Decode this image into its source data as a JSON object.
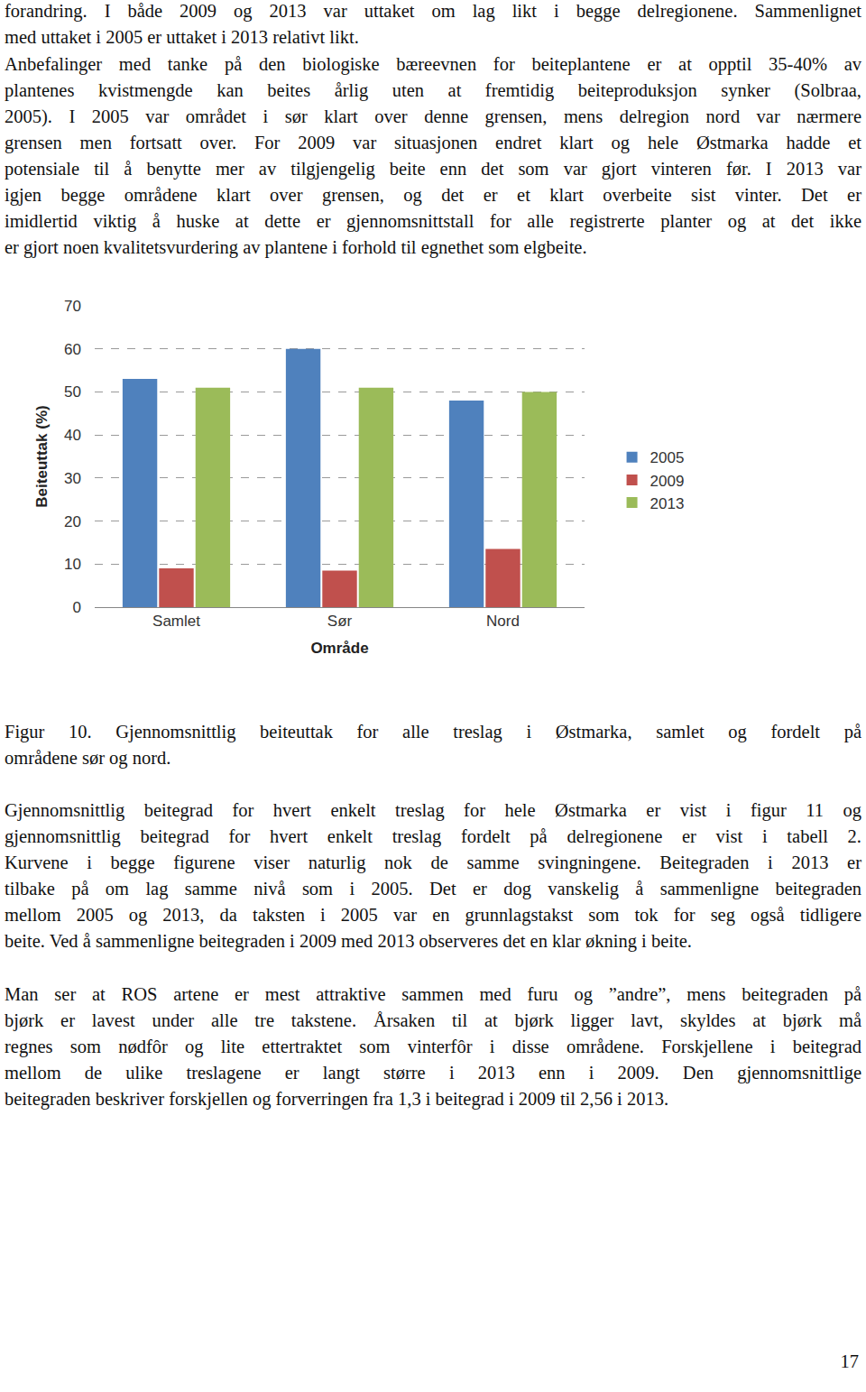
{
  "text_before": [
    [
      "forandring. I både 2009 og 2013 var uttaket om lag likt i begge delregionene. Sammenlignet",
      "med uttaket i 2005 er uttaket i 2013 relativt likt."
    ],
    [
      "Anbefalinger med tanke på den biologiske bæreevnen for beiteplantene er at opptil 35-40% av",
      "plantenes kvistmengde kan beites årlig uten at fremtidig beiteproduksjon synker (Solbraa,",
      "2005). I 2005 var området i sør klart over denne grensen, mens delregion nord var nærmere",
      "grensen men fortsatt over. For 2009 var situasjonen endret klart og hele Østmarka hadde et",
      "potensiale til å benytte mer av tilgjengelig beite enn det som var gjort vinteren før. I 2013 var",
      "igjen begge områdene klart over grensen, og det er et klart overbeite sist vinter. Det er",
      "imidlertid viktig å huske at dette er gjennomsnittstall for alle registrerte planter og at det ikke",
      "er gjort noen kvalitetsvurdering av plantene i forhold til egnethet som elgbeite."
    ]
  ],
  "chart_data": {
    "type": "bar",
    "categories": [
      "Samlet",
      "Sør",
      "Nord"
    ],
    "series": [
      {
        "name": "2005",
        "color": "#4f81bd",
        "values": [
          53,
          60,
          48
        ]
      },
      {
        "name": "2009",
        "color": "#c0504d",
        "values": [
          9,
          8.5,
          13.5
        ]
      },
      {
        "name": "2013",
        "color": "#9bbb59",
        "values": [
          51,
          51,
          50
        ]
      }
    ],
    "xlabel": "Område",
    "ylabel": "Beiteuttak (%)",
    "ylim": [
      0,
      70
    ],
    "yticks": [
      0,
      10,
      20,
      30,
      40,
      50,
      60,
      70
    ],
    "grid": true,
    "legend": "right"
  },
  "caption": [
    "Figur 10. Gjennomsnittlig beiteuttak for alle treslag i Østmarka, samlet og fordelt på",
    "områdene sør og nord."
  ],
  "text_after": [
    [
      "Gjennomsnittlig beitegrad for hvert enkelt treslag for hele Østmarka er vist i figur 11 og",
      "gjennomsnittlig beitegrad for hvert enkelt treslag fordelt på delregionene er vist i tabell 2.",
      "Kurvene i begge figurene viser naturlig nok de samme svingningene. Beitegraden i 2013 er",
      "tilbake på om lag samme nivå som i 2005. Det er dog vanskelig å sammenligne beitegraden",
      "mellom 2005 og 2013, da taksten i 2005 var en grunnlagstakst som tok for seg også tidligere",
      "beite. Ved å sammenligne beitegraden i 2009 med 2013 observeres det en klar økning i beite."
    ],
    [
      "Man ser at ROS artene er mest attraktive sammen med furu og ”andre”, mens beitegraden på",
      "bjørk er lavest under alle tre takstene. Årsaken til at bjørk ligger lavt, skyldes at bjørk må",
      "regnes som nødfôr og lite ettertraktet som vinterfôr i disse områdene. Forskjellene i beitegrad",
      "mellom de ulike treslagene er langt større i 2013 enn i 2009. Den gjennomsnittlige",
      "beitegraden beskriver forskjellen og forverringen fra 1,3 i beitegrad i 2009 til 2,56 i 2013."
    ]
  ],
  "page_number": "17"
}
